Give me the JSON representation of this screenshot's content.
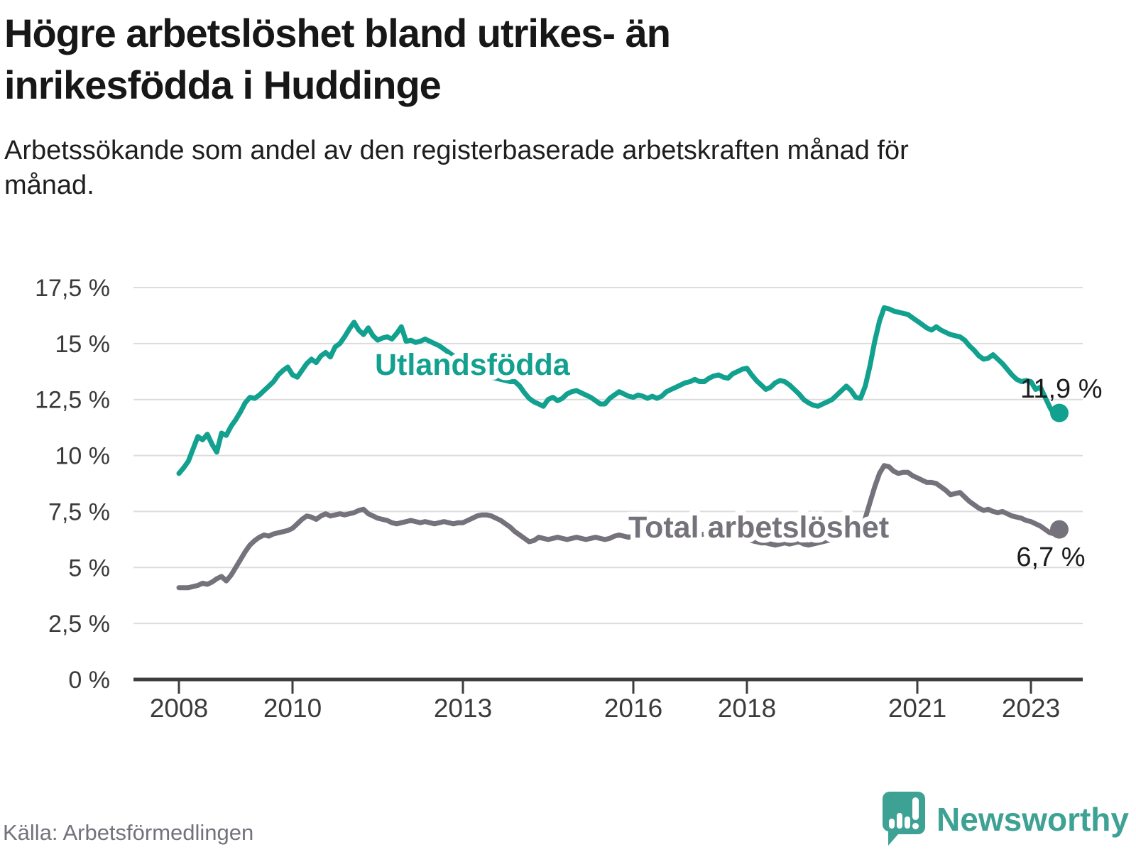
{
  "header": {
    "title": "Högre arbetslöshet bland utrikes- än inrikesfödda i Huddinge",
    "subtitle": "Arbetssökande som andel av den registerbaserade arbetskraften månad för månad."
  },
  "footer": {
    "source": "Källa: Arbetsförmedlingen",
    "brand": "Newsworthy"
  },
  "colors": {
    "teal_line": "#12a08f",
    "gray_line": "#76727b",
    "grid": "#dcdcdc",
    "axis": "#3d3d3d",
    "tick_text": "#3a3a3a",
    "end_label_text": "#1c1c1c",
    "logo_teal": "#3da294"
  },
  "chart_data": {
    "type": "line",
    "unit": "%",
    "frequency": "monthly",
    "start": {
      "year": 2008,
      "month": 1
    },
    "end": {
      "year": 2023,
      "month": 7
    },
    "ylim": [
      0,
      17.5
    ],
    "grid": true,
    "y_ticks": [
      0,
      2.5,
      5,
      7.5,
      10,
      12.5,
      15,
      17.5
    ],
    "y_tick_labels": [
      "0 %",
      "2,5 %",
      "5 %",
      "7,5 %",
      "10 %",
      "12,5 %",
      "15 %",
      "17,5 %"
    ],
    "x_ticks": [
      2008,
      2010,
      2013,
      2016,
      2018,
      2021,
      2023
    ],
    "x_tick_labels": [
      "2008",
      "2010",
      "2013",
      "2016",
      "2018",
      "2021",
      "2023"
    ],
    "series": [
      {
        "name": "Utlandsfödda",
        "color": "#12a08f",
        "end_label": "11,9 %",
        "last_value": 11.9,
        "values": [
          9.2,
          9.45,
          9.75,
          10.3,
          10.85,
          10.7,
          10.95,
          10.5,
          10.15,
          11.0,
          10.9,
          11.3,
          11.6,
          11.95,
          12.35,
          12.6,
          12.55,
          12.7,
          12.9,
          13.1,
          13.3,
          13.6,
          13.8,
          13.95,
          13.6,
          13.5,
          13.8,
          14.1,
          14.3,
          14.15,
          14.45,
          14.6,
          14.4,
          14.85,
          15.0,
          15.3,
          15.65,
          15.95,
          15.6,
          15.4,
          15.7,
          15.35,
          15.15,
          15.25,
          15.3,
          15.2,
          15.45,
          15.75,
          15.1,
          15.15,
          15.05,
          15.1,
          15.2,
          15.1,
          15.0,
          14.9,
          14.75,
          14.6,
          14.45,
          14.3,
          14.15,
          14.0,
          13.85,
          13.75,
          13.65,
          13.55,
          13.5,
          13.45,
          13.4,
          13.35,
          13.3,
          13.3,
          13.1,
          12.8,
          12.55,
          12.4,
          12.3,
          12.2,
          12.5,
          12.6,
          12.45,
          12.55,
          12.75,
          12.85,
          12.9,
          12.8,
          12.7,
          12.6,
          12.45,
          12.3,
          12.3,
          12.55,
          12.7,
          12.85,
          12.75,
          12.65,
          12.6,
          12.7,
          12.65,
          12.55,
          12.65,
          12.55,
          12.65,
          12.85,
          12.95,
          13.05,
          13.15,
          13.25,
          13.3,
          13.4,
          13.3,
          13.3,
          13.45,
          13.55,
          13.6,
          13.5,
          13.45,
          13.65,
          13.75,
          13.85,
          13.9,
          13.6,
          13.35,
          13.15,
          12.95,
          13.05,
          13.25,
          13.35,
          13.3,
          13.15,
          12.95,
          12.75,
          12.5,
          12.35,
          12.25,
          12.2,
          12.3,
          12.4,
          12.5,
          12.7,
          12.9,
          13.1,
          12.9,
          12.6,
          12.55,
          13.1,
          14.0,
          15.1,
          16.0,
          16.6,
          16.55,
          16.45,
          16.4,
          16.35,
          16.3,
          16.15,
          16.0,
          15.85,
          15.7,
          15.6,
          15.75,
          15.6,
          15.5,
          15.4,
          15.35,
          15.3,
          15.15,
          14.9,
          14.7,
          14.45,
          14.3,
          14.35,
          14.5,
          14.3,
          14.1,
          13.85,
          13.6,
          13.4,
          13.3,
          13.35,
          13.3,
          12.95,
          13.05,
          12.6,
          12.15,
          11.8,
          11.9
        ]
      },
      {
        "name": "Total arbetslöshet",
        "color": "#76727b",
        "end_label": "6,7 %",
        "last_value": 6.7,
        "values": [
          4.1,
          4.1,
          4.1,
          4.15,
          4.2,
          4.3,
          4.25,
          4.35,
          4.5,
          4.6,
          4.4,
          4.65,
          5.0,
          5.35,
          5.7,
          6.0,
          6.2,
          6.35,
          6.45,
          6.4,
          6.5,
          6.55,
          6.6,
          6.65,
          6.75,
          6.95,
          7.15,
          7.3,
          7.25,
          7.15,
          7.3,
          7.4,
          7.3,
          7.35,
          7.4,
          7.35,
          7.4,
          7.45,
          7.55,
          7.6,
          7.4,
          7.3,
          7.2,
          7.15,
          7.1,
          7.0,
          6.95,
          7.0,
          7.05,
          7.1,
          7.05,
          7.0,
          7.05,
          7.0,
          6.95,
          7.0,
          7.05,
          7.0,
          6.95,
          7.0,
          7.0,
          7.1,
          7.2,
          7.3,
          7.35,
          7.35,
          7.3,
          7.2,
          7.1,
          6.95,
          6.8,
          6.6,
          6.45,
          6.3,
          6.15,
          6.2,
          6.35,
          6.3,
          6.25,
          6.3,
          6.35,
          6.3,
          6.25,
          6.3,
          6.35,
          6.3,
          6.25,
          6.3,
          6.35,
          6.3,
          6.25,
          6.3,
          6.4,
          6.45,
          6.4,
          6.35,
          6.4,
          6.45,
          6.4,
          6.35,
          6.4,
          6.45,
          6.4,
          6.45,
          6.5,
          6.45,
          6.4,
          6.45,
          6.5,
          6.5,
          6.45,
          6.5,
          6.55,
          6.5,
          6.45,
          6.4,
          6.4,
          6.35,
          6.3,
          6.3,
          6.25,
          6.2,
          6.15,
          6.1,
          6.1,
          6.05,
          6.0,
          6.05,
          6.1,
          6.05,
          6.1,
          6.15,
          6.05,
          6.0,
          6.05,
          6.1,
          6.15,
          6.2,
          6.25,
          6.3,
          6.35,
          6.45,
          6.5,
          6.55,
          6.7,
          7.2,
          7.9,
          8.6,
          9.2,
          9.55,
          9.5,
          9.3,
          9.2,
          9.25,
          9.25,
          9.1,
          9.0,
          8.9,
          8.8,
          8.8,
          8.75,
          8.6,
          8.45,
          8.25,
          8.3,
          8.35,
          8.15,
          7.95,
          7.8,
          7.65,
          7.55,
          7.6,
          7.5,
          7.45,
          7.5,
          7.4,
          7.3,
          7.25,
          7.2,
          7.1,
          7.05,
          6.95,
          6.85,
          6.7,
          6.55,
          6.5,
          6.7
        ]
      }
    ]
  }
}
